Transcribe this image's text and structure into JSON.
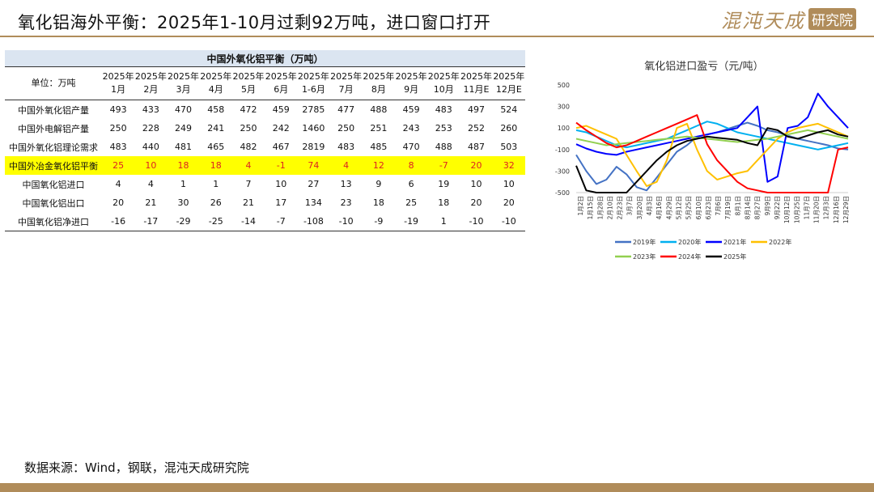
{
  "page": {
    "title": "氧化铝海外平衡：2025年1-10月过剩92万吨，进口窗口打开",
    "logo_text": "混沌天成",
    "logo_tag": "研究院",
    "source": "数据来源：Wind，钢联，混沌天成研究院"
  },
  "table": {
    "title": "中国外氧化铝平衡（万吨）",
    "unit_label": "单位：万吨",
    "columns": [
      [
        "2025年",
        "1月"
      ],
      [
        "2025年",
        "2月"
      ],
      [
        "2025年",
        "3月"
      ],
      [
        "2025年",
        "4月"
      ],
      [
        "2025年",
        "5月"
      ],
      [
        "2025年",
        "6月"
      ],
      [
        "2025年",
        "1-6月"
      ],
      [
        "2025年",
        "7月"
      ],
      [
        "2025年",
        "8月"
      ],
      [
        "2025年",
        "9月"
      ],
      [
        "2025年",
        "10月"
      ],
      [
        "2025年",
        "11月E"
      ],
      [
        "2025年",
        "12月E"
      ]
    ],
    "rows": [
      {
        "label": "中国外氧化铝产量",
        "values": [
          "493",
          "433",
          "470",
          "458",
          "472",
          "459",
          "2785",
          "477",
          "488",
          "459",
          "483",
          "497",
          "524"
        ]
      },
      {
        "label": "中国外电解铝产量",
        "values": [
          "250",
          "228",
          "249",
          "241",
          "250",
          "242",
          "1460",
          "250",
          "251",
          "243",
          "253",
          "252",
          "260"
        ]
      },
      {
        "label": "中国外氧化铝理论需求",
        "values": [
          "483",
          "440",
          "481",
          "465",
          "482",
          "467",
          "2819",
          "483",
          "485",
          "470",
          "488",
          "487",
          "503"
        ]
      },
      {
        "label": "中国外冶金氧化铝平衡",
        "values": [
          "25",
          "10",
          "18",
          "18",
          "4",
          "-1",
          "74",
          "4",
          "12",
          "8",
          "-7",
          "20",
          "32"
        ]
      },
      {
        "label": "中国氧化铝进口",
        "values": [
          "4",
          "4",
          "1",
          "1",
          "7",
          "10",
          "27",
          "13",
          "9",
          "6",
          "19",
          "10",
          "10"
        ]
      },
      {
        "label": "中国氧化铝出口",
        "values": [
          "20",
          "21",
          "30",
          "26",
          "21",
          "17",
          "134",
          "23",
          "18",
          "25",
          "18",
          "20",
          "20"
        ]
      },
      {
        "label": "中国氧化铝净进口",
        "values": [
          "-16",
          "-17",
          "-29",
          "-25",
          "-14",
          "-7",
          "-108",
          "-10",
          "-9",
          "-19",
          "1",
          "-10",
          "-10"
        ]
      }
    ]
  },
  "chart_data": {
    "type": "line",
    "title": "氧化铝进口盈亏（元/吨）",
    "ylim": [
      -500,
      500
    ],
    "yticks": [
      "500",
      "300",
      "100",
      "-100",
      "-300",
      "-500"
    ],
    "xticks": [
      "1月2日",
      "1月15日",
      "1月28日",
      "2月10日",
      "2月23日",
      "3月7日",
      "3月20日",
      "4月3日",
      "4月16日",
      "4月29日",
      "5月12日",
      "5月25日",
      "6月10日",
      "6月23日",
      "7月6日",
      "7月19日",
      "8月1日",
      "8月14日",
      "8月27日",
      "9月9日",
      "9月22日",
      "10月12日",
      "10月25日",
      "11月7日",
      "11月20日",
      "12月3日",
      "12月16日",
      "12月29日"
    ],
    "legend_position": "bottom",
    "series": [
      {
        "name": "2019年",
        "color": "#4472c4",
        "values": [
          -150,
          -300,
          -420,
          -380,
          -260,
          -330,
          -450,
          -480,
          -360,
          -240,
          -120,
          -60,
          20,
          40,
          60,
          90,
          120,
          150,
          120,
          80,
          60,
          30,
          0,
          -20,
          -40,
          -60,
          -90,
          -100
        ]
      },
      {
        "name": "2020年",
        "color": "#00b0f0",
        "values": [
          80,
          60,
          20,
          -20,
          -60,
          -80,
          -60,
          -40,
          -20,
          0,
          40,
          80,
          120,
          160,
          140,
          100,
          60,
          40,
          20,
          0,
          -20,
          -40,
          -60,
          -80,
          -100,
          -80,
          -60,
          -40
        ]
      },
      {
        "name": "2021年",
        "color": "#0000ff",
        "values": [
          -50,
          -90,
          -120,
          -140,
          -150,
          -120,
          -100,
          -80,
          -60,
          -40,
          -20,
          0,
          20,
          40,
          60,
          80,
          100,
          200,
          300,
          -400,
          -350,
          100,
          120,
          200,
          420,
          300,
          200,
          100
        ]
      },
      {
        "name": "2022年",
        "color": "#ffc000",
        "values": [
          100,
          120,
          80,
          40,
          0,
          -150,
          -300,
          -440,
          -400,
          -200,
          100,
          140,
          -100,
          -300,
          -380,
          -350,
          -320,
          -300,
          -200,
          -100,
          0,
          60,
          100,
          120,
          140,
          100,
          60,
          20
        ]
      },
      {
        "name": "2023年",
        "color": "#92d050",
        "values": [
          0,
          -20,
          -40,
          -60,
          -50,
          -40,
          -30,
          -20,
          -10,
          0,
          10,
          20,
          10,
          0,
          -10,
          -20,
          -30,
          -20,
          -10,
          0,
          20,
          40,
          60,
          80,
          60,
          40,
          20,
          0
        ]
      },
      {
        "name": "2024年",
        "color": "#ff0000",
        "values": [
          150,
          80,
          20,
          -40,
          -80,
          -60,
          -20,
          20,
          60,
          100,
          140,
          180,
          220,
          -50,
          -200,
          -300,
          -400,
          -460,
          -480,
          -500,
          -500,
          -500,
          -500,
          -500,
          -500,
          -500,
          -100,
          -80
        ]
      },
      {
        "name": "2025年",
        "color": "#000000",
        "values": [
          -250,
          -480,
          -500,
          -500,
          -500,
          -500,
          -400,
          -300,
          -200,
          -120,
          -60,
          -20,
          0,
          20,
          10,
          0,
          -10,
          -40,
          -60,
          100,
          80,
          20,
          0,
          30,
          60,
          80,
          40,
          20
        ]
      }
    ]
  }
}
